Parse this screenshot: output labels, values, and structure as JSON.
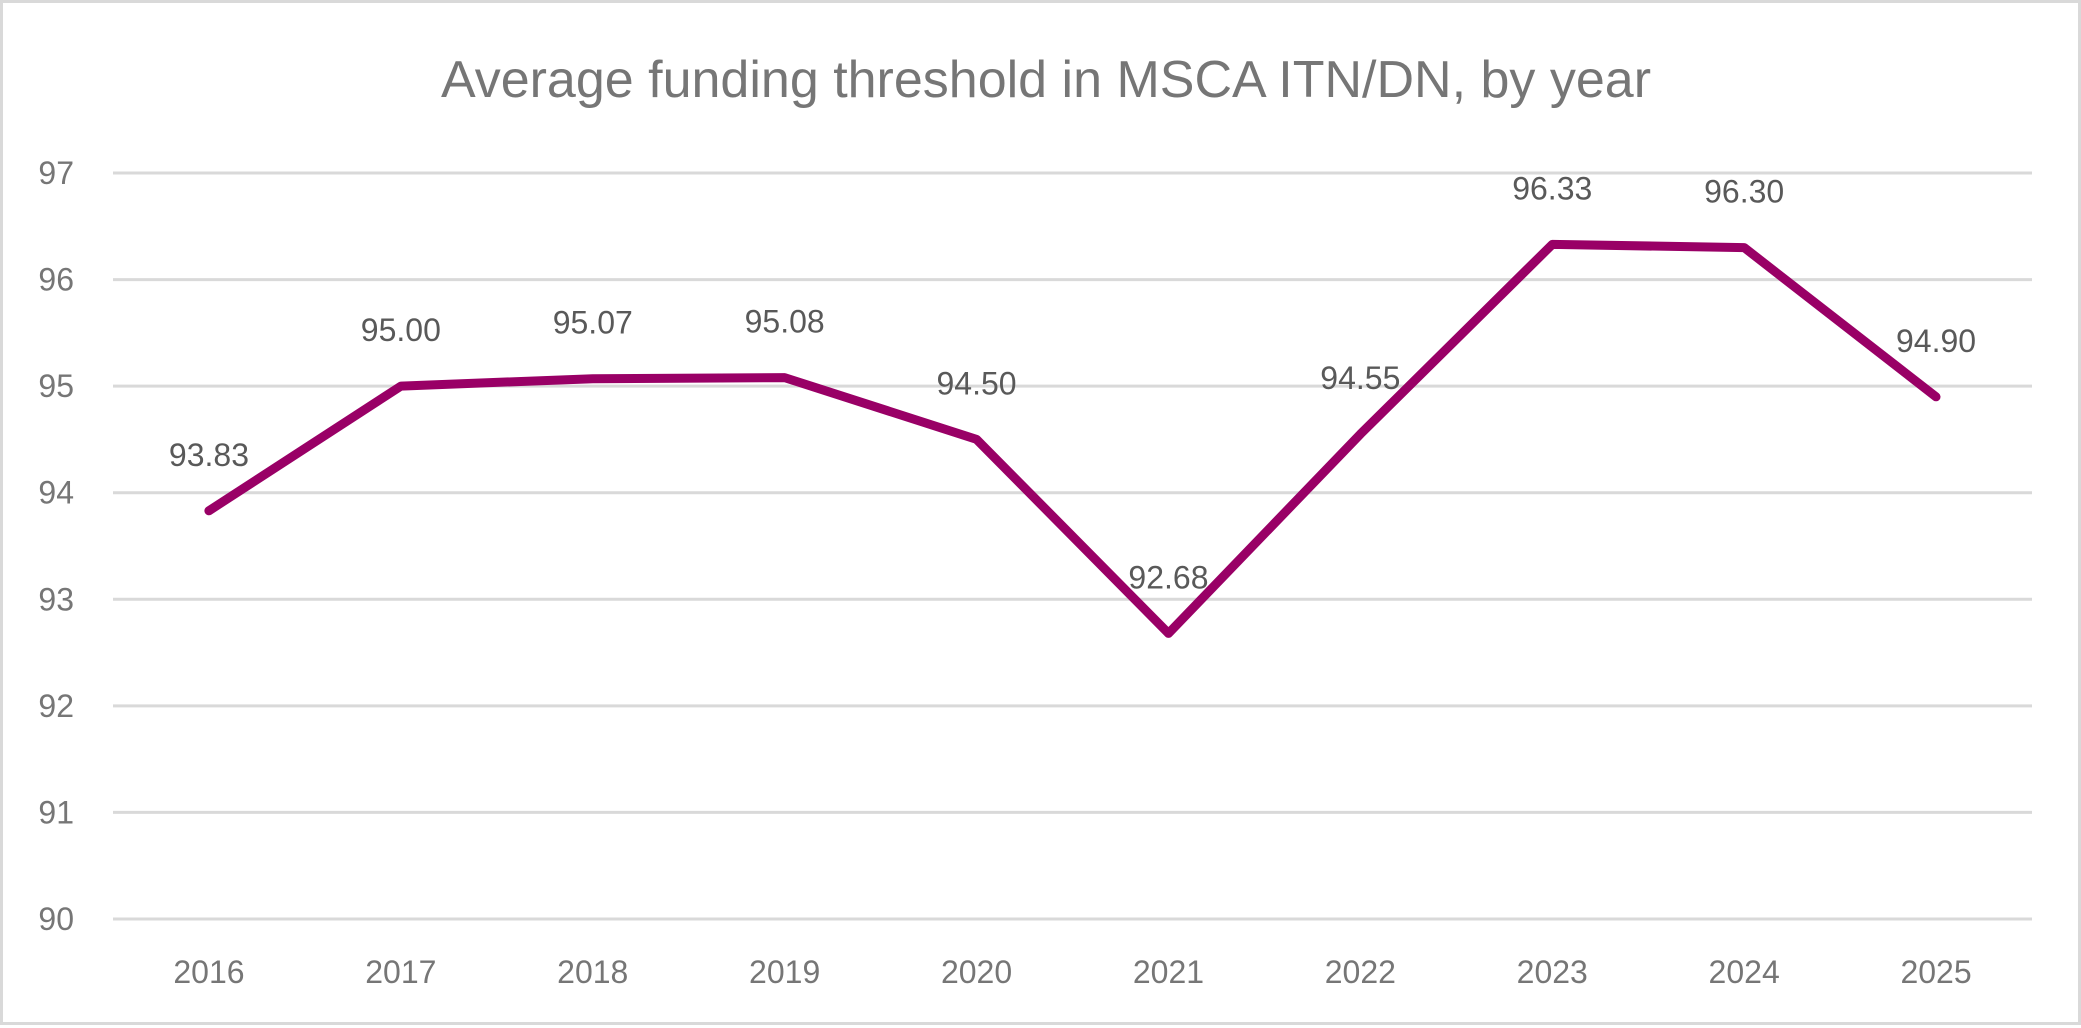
{
  "chart_data": {
    "type": "line",
    "title": "Average funding threshold in MSCA ITN/DN, by year",
    "xlabel": "",
    "ylabel": "",
    "categories": [
      "2016",
      "2017",
      "2018",
      "2019",
      "2020",
      "2021",
      "2022",
      "2023",
      "2024",
      "2025"
    ],
    "series": [
      {
        "name": "Average funding threshold",
        "color": "#990066",
        "values": [
          93.83,
          95.0,
          95.07,
          95.08,
          94.5,
          92.68,
          94.55,
          96.33,
          96.3,
          94.9
        ],
        "labels": [
          "93.83",
          "95.00",
          "95.07",
          "95.08",
          "94.50",
          "92.68",
          "94.55",
          "96.33",
          "96.30",
          "94.90"
        ]
      }
    ],
    "ylim": [
      90,
      97
    ],
    "yticks": [
      90,
      91,
      92,
      93,
      94,
      95,
      96,
      97
    ],
    "grid": true,
    "legend": "none"
  }
}
